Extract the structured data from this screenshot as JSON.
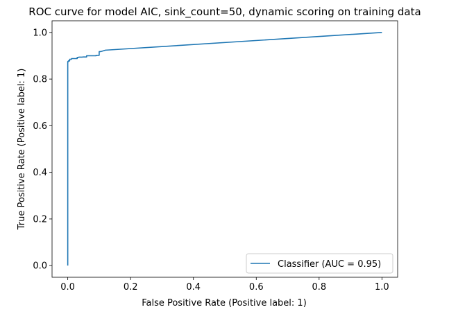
{
  "chart_data": {
    "type": "line",
    "title": "ROC curve for model AIC, sink_count=50, dynamic scoring on training data",
    "xlabel": "False Positive Rate (Positive label: 1)",
    "ylabel": "True Positive Rate (Positive label: 1)",
    "xlim": [
      -0.05,
      1.05
    ],
    "ylim": [
      -0.05,
      1.05
    ],
    "xticks": [
      0.0,
      0.2,
      0.4,
      0.6,
      0.8,
      1.0
    ],
    "xtick_labels": [
      "0.0",
      "0.2",
      "0.4",
      "0.6",
      "0.8",
      "1.0"
    ],
    "yticks": [
      0.0,
      0.2,
      0.4,
      0.6,
      0.8,
      1.0
    ],
    "ytick_labels": [
      "0.0",
      "0.2",
      "0.4",
      "0.6",
      "0.8",
      "1.0"
    ],
    "grid": false,
    "legend_position": "lower-right",
    "series": [
      {
        "name": "Classifier (AUC = 0.95)",
        "color": "#1f77b4",
        "x": [
          0.0,
          0.0,
          0.002,
          0.002,
          0.006,
          0.006,
          0.012,
          0.012,
          0.03,
          0.03,
          0.035,
          0.035,
          0.045,
          0.05,
          0.055,
          0.06,
          0.06,
          0.09,
          0.09,
          0.1,
          0.1,
          0.105,
          0.11,
          0.12,
          1.0
        ],
        "y": [
          0.0,
          0.875,
          0.875,
          0.878,
          0.878,
          0.885,
          0.885,
          0.888,
          0.888,
          0.893,
          0.893,
          0.894,
          0.894,
          0.895,
          0.895,
          0.895,
          0.9,
          0.9,
          0.902,
          0.902,
          0.918,
          0.918,
          0.92,
          0.924,
          1.0
        ]
      }
    ]
  }
}
